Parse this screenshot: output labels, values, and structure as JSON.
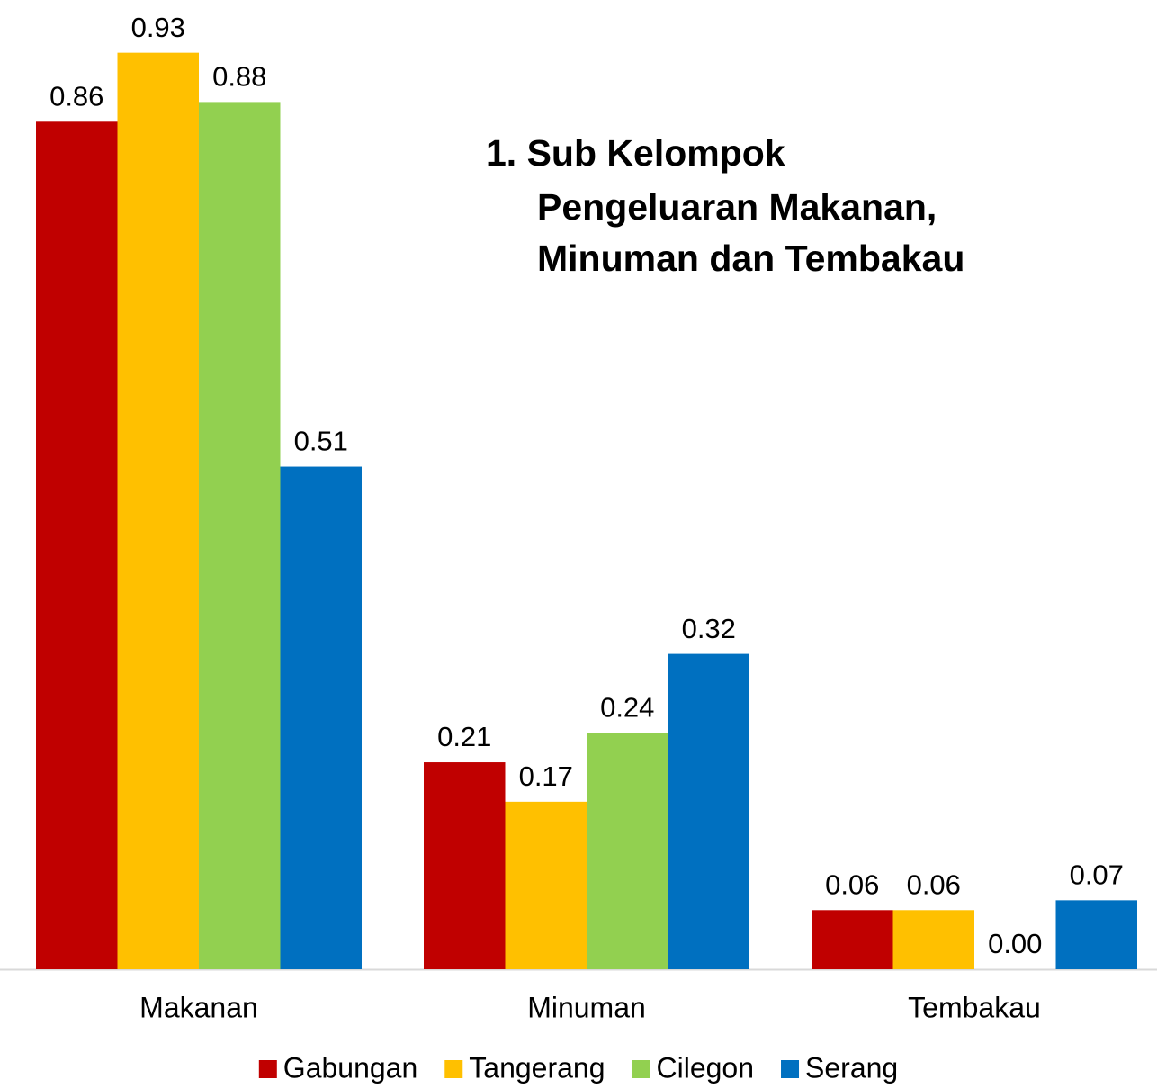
{
  "chart_data": {
    "type": "bar",
    "title": [
      "1. Sub Kelompok",
      "Pengeluaran Makanan,",
      "Minuman dan Tembakau"
    ],
    "categories": [
      "Makanan",
      "Minuman",
      "Tembakau"
    ],
    "series": [
      {
        "name": "Gabungan",
        "color": "#c00000",
        "values": [
          0.86,
          0.21,
          0.06
        ],
        "value_labels": [
          "0.86",
          "0.21",
          "0.06"
        ]
      },
      {
        "name": "Tangerang",
        "color": "#ffc000",
        "values": [
          0.93,
          0.17,
          0.06
        ],
        "value_labels": [
          "0.93",
          "0.17",
          "0.06"
        ]
      },
      {
        "name": "Cilegon",
        "color": "#92d050",
        "values": [
          0.88,
          0.24,
          0
        ],
        "value_labels": [
          "0.88",
          "0.24",
          "0.00"
        ]
      },
      {
        "name": "Serang",
        "color": "#0070c0",
        "values": [
          0.51,
          0.32,
          0.07
        ],
        "value_labels": [
          "0.51",
          "0.32",
          "0.07"
        ]
      }
    ],
    "ylim": [
      0,
      1
    ],
    "legend": "bottom"
  }
}
